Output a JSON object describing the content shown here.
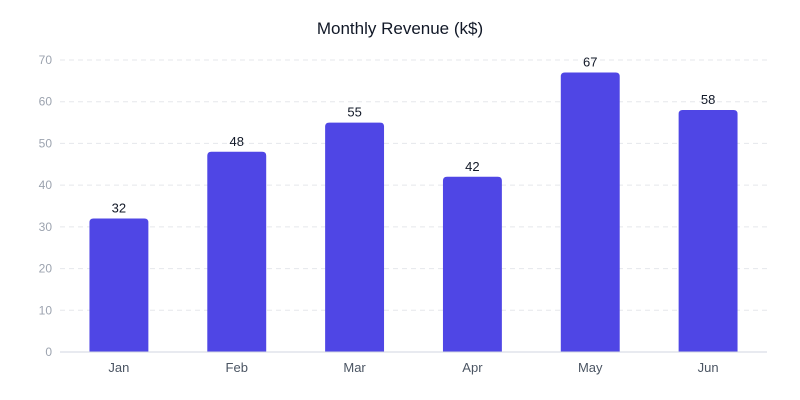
{
  "chart_data": {
    "type": "bar",
    "title": "Monthly Revenue (k$)",
    "categories": [
      "Jan",
      "Feb",
      "Mar",
      "Apr",
      "May",
      "Jun"
    ],
    "values": [
      32,
      48,
      55,
      42,
      67,
      58
    ],
    "xlabel": "",
    "ylabel": "",
    "ylim": [
      0,
      70
    ],
    "yticks": [
      0,
      10,
      20,
      30,
      40,
      50,
      60,
      70
    ],
    "grid": true,
    "data_labels": true,
    "colors": {
      "bar": "#4f46e5",
      "grid": "#e5e7eb",
      "axis": "#d1d5e0"
    }
  }
}
